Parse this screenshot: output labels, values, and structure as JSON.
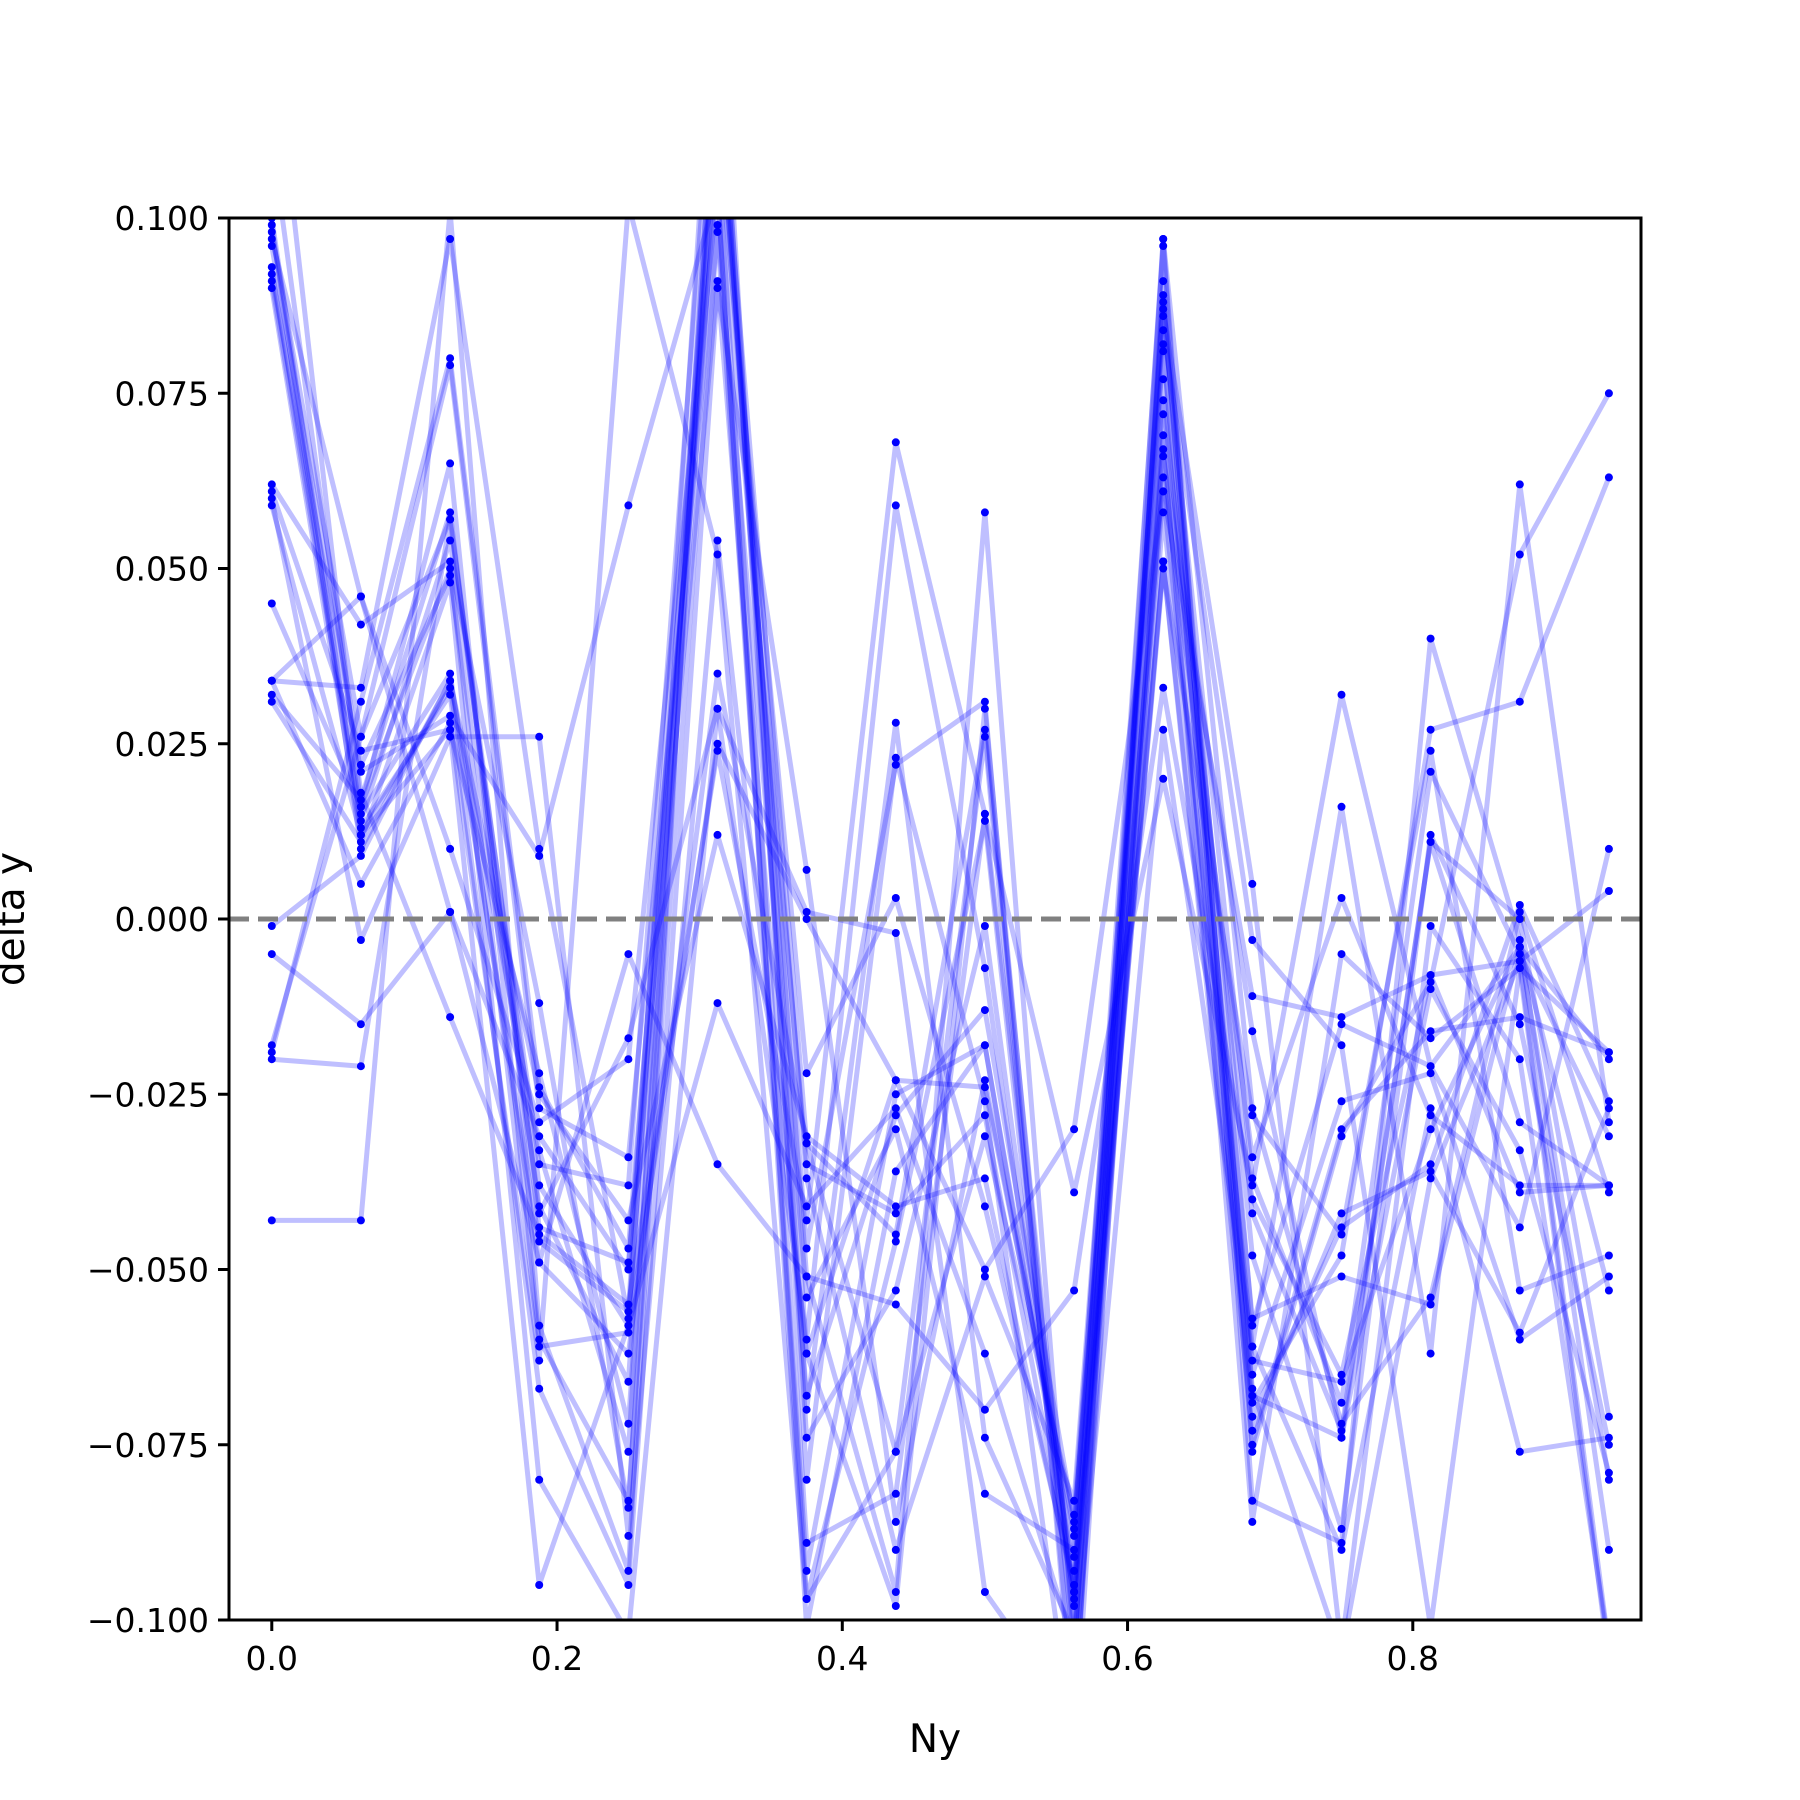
{
  "chart_data": {
    "type": "line",
    "title": "",
    "xlabel": "Ny",
    "ylabel": "delta y",
    "xlim": [
      -0.03,
      0.96
    ],
    "ylim": [
      -0.1,
      0.1
    ],
    "x_ticks": [
      0.0,
      0.2,
      0.4,
      0.6,
      0.8
    ],
    "x_tick_labels": [
      "0.0",
      "0.2",
      "0.4",
      "0.6",
      "0.8"
    ],
    "y_ticks": [
      0.1,
      0.075,
      0.05,
      0.025,
      0.0,
      -0.025,
      -0.05,
      -0.075,
      -0.1
    ],
    "y_tick_labels": [
      "0.100",
      "0.075",
      "0.050",
      "0.025",
      "0.000",
      "−0.025",
      "−0.050",
      "−0.075",
      "−0.100"
    ],
    "grid": false,
    "legend": "none",
    "reference_line": {
      "y": 0.0,
      "style": "dashed",
      "color": "#808080"
    },
    "series_color": "#0000ff",
    "series_alpha": 0.25,
    "x": [
      0.0,
      0.0625,
      0.125,
      0.1875,
      0.25,
      0.3125,
      0.375,
      0.4375,
      0.5,
      0.5625,
      0.625,
      0.6875,
      0.75,
      0.8125,
      0.875,
      0.9375
    ],
    "series": [
      {
        "values": [
          0.098,
          0.026,
          0.057,
          -0.038,
          -0.058,
          0.124,
          -0.032,
          -0.045,
          0.027,
          -0.101,
          0.086,
          -0.037,
          -0.069,
          0.021,
          -0.005,
          -0.031
        ]
      },
      {
        "values": [
          0.096,
          0.022,
          0.049,
          -0.041,
          -0.066,
          0.118,
          -0.047,
          0.022,
          0.031,
          -0.115,
          0.091,
          -0.058,
          -0.015,
          -0.021,
          -0.044,
          0.01
        ]
      },
      {
        "values": [
          0.091,
          0.014,
          0.054,
          -0.035,
          -0.038,
          0.131,
          -0.062,
          -0.023,
          -0.024,
          -0.087,
          0.074,
          -0.042,
          -0.073,
          0.011,
          -0.029,
          -0.038
        ]
      },
      {
        "values": [
          0.061,
          0.024,
          0.027,
          -0.022,
          -0.072,
          0.11,
          -0.089,
          -0.082,
          0.015,
          -0.098,
          0.067,
          -0.071,
          -0.044,
          -0.035,
          0.002,
          -0.026
        ]
      },
      {
        "values": [
          0.059,
          0.012,
          0.033,
          -0.046,
          -0.056,
          0.14,
          -0.08,
          0.023,
          -0.026,
          -0.119,
          0.077,
          -0.065,
          -0.026,
          -0.022,
          -0.06,
          -0.051
        ]
      },
      {
        "values": [
          0.045,
          0.016,
          0.065,
          -0.06,
          -0.083,
          0.099,
          -0.054,
          -0.03,
          -0.082,
          -0.09,
          0.081,
          -0.048,
          -0.087,
          0.012,
          -0.015,
          -0.075
        ]
      },
      {
        "values": [
          0.034,
          0.046,
          0.01,
          -0.029,
          -0.02,
          0.104,
          -0.097,
          -0.076,
          0.026,
          -0.112,
          0.066,
          -0.016,
          -0.074,
          -0.01,
          -0.033,
          -0.079
        ]
      },
      {
        "values": [
          0.032,
          0.017,
          0.058,
          -0.044,
          -0.049,
          0.091,
          -0.068,
          -0.028,
          -0.013,
          -0.086,
          0.063,
          -0.034,
          0.003,
          -0.028,
          -0.038,
          -0.038
        ]
      },
      {
        "values": [
          -0.001,
          0.009,
          0.034,
          -0.033,
          -0.076,
          0.128,
          -0.07,
          0.028,
          -0.074,
          -0.102,
          0.072,
          -0.057,
          -0.051,
          -0.055,
          -0.004,
          -0.02
        ]
      },
      {
        "values": [
          -0.005,
          -0.015,
          0.001,
          -0.031,
          -0.05,
          0.119,
          -0.037,
          -0.09,
          -0.051,
          -0.083,
          0.084,
          -0.003,
          -0.018,
          -0.101,
          -0.007,
          -0.019
        ]
      },
      {
        "values": [
          -0.019,
          0.031,
          0.08,
          -0.024,
          -0.047,
          0.107,
          -0.035,
          -0.042,
          -0.028,
          -0.095,
          0.05,
          -0.028,
          -0.045,
          0.024,
          -0.053,
          -0.048
        ]
      },
      {
        "values": [
          -0.018,
          0.026,
          0.079,
          -0.027,
          -0.034,
          0.098,
          -0.093,
          -0.025,
          -0.018,
          -0.091,
          0.061,
          -0.061,
          -0.09,
          -0.027,
          -0.076,
          -0.074
        ]
      },
      {
        "values": [
          0.062,
          0.042,
          0.051,
          -0.012,
          -0.084,
          0.121,
          -0.051,
          -0.096,
          0.058,
          -0.104,
          0.058,
          -0.063,
          -0.066,
          -0.03,
          -0.004,
          -0.08
        ]
      },
      {
        "values": [
          0.034,
          0.033,
          0.097,
          0.01,
          -0.057,
          0.113,
          -0.022,
          0.003,
          -0.041,
          -0.095,
          0.097,
          -0.075,
          -0.03,
          -0.016,
          -0.014,
          -0.019
        ]
      },
      {
        "values": [
          -0.043,
          -0.043,
          0.101,
          -0.058,
          -0.093,
          0.128,
          -0.074,
          -0.053,
          -0.001,
          -0.096,
          0.088,
          -0.067,
          -0.105,
          -0.037,
          -0.006,
          0.004
        ]
      },
      {
        "values": [
          0.1,
          0.013,
          0.032,
          -0.067,
          -0.095,
          0.09,
          0.007,
          -0.086,
          -0.023,
          -0.088,
          0.096,
          -0.083,
          -0.089,
          0.04,
          -0.003,
          -0.09
        ]
      },
      {
        "values": [
          0.092,
          0.021,
          0.029,
          0.009,
          0.059,
          0.104,
          -0.101,
          -0.036,
          -0.018,
          -0.093,
          0.051,
          -0.069,
          -0.048,
          0.027,
          0.031,
          0.063
        ]
      },
      {
        "values": [
          0.097,
          0.046,
          0.001,
          -0.049,
          -0.062,
          0.035,
          -0.032,
          -0.076,
          -0.031,
          -0.085,
          0.082,
          -0.076,
          -0.031,
          -0.009,
          0.052,
          0.075
        ]
      },
      {
        "values": [
          0.06,
          -0.003,
          0.026,
          0.026,
          -0.088,
          0.054,
          -0.062,
          -0.098,
          0.03,
          -0.106,
          0.027,
          -0.061,
          0.016,
          -0.062,
          0.062,
          -0.029
        ]
      },
      {
        "values": [
          0.034,
          0.005,
          0.028,
          -0.063,
          0.102,
          0.052,
          -0.097,
          -0.046,
          0.014,
          -0.104,
          0.089,
          -0.068,
          -0.074,
          0.011,
          0.0,
          -0.071
        ]
      },
      {
        "values": [
          0.031,
          0.011,
          0.048,
          -0.08,
          -0.102,
          0.03,
          0.001,
          -0.002,
          -0.096,
          -0.114,
          0.097,
          -0.027,
          -0.072,
          -0.054,
          0.001,
          -0.039
        ]
      },
      {
        "values": [
          -0.02,
          -0.021,
          0.057,
          -0.042,
          -0.017,
          0.03,
          -0.06,
          0.059,
          -0.007,
          -0.097,
          0.051,
          -0.073,
          -0.042,
          -0.036,
          -0.059,
          -0.027
        ]
      },
      {
        "values": [
          0.093,
          0.015,
          0.035,
          -0.049,
          -0.005,
          -0.035,
          -0.051,
          -0.055,
          -0.07,
          -0.053,
          0.033,
          -0.04,
          -0.065,
          -0.008,
          -0.039,
          -0.038
        ]
      },
      {
        "values": [
          0.111,
          0.018,
          -0.014,
          -0.045,
          -0.055,
          0.024,
          -0.043,
          0.068,
          0.015,
          -0.039,
          0.02,
          -0.038,
          0.032,
          -0.021,
          -0.004,
          -0.053
        ]
      },
      {
        "values": [
          0.128,
          0.016,
          0.05,
          -0.061,
          -0.059,
          0.025,
          0.0,
          -0.023,
          -0.05,
          -0.03,
          0.061,
          -0.011,
          -0.014,
          -0.008,
          -0.006,
          -0.104
        ]
      },
      {
        "values": [
          0.09,
          0.012,
          0.027,
          -0.095,
          -0.058,
          -0.012,
          -0.041,
          -0.027,
          -0.062,
          -0.104,
          0.069,
          -0.086,
          -0.005,
          -0.017,
          -0.007,
          -0.106
        ]
      },
      {
        "values": [
          0.099,
          0.01,
          0.034,
          -0.025,
          -0.043,
          0.012,
          -0.031,
          -0.041,
          -0.037,
          -0.096,
          0.087,
          0.005,
          -0.104,
          -0.001,
          -0.02,
          -0.104
        ]
      }
    ]
  }
}
